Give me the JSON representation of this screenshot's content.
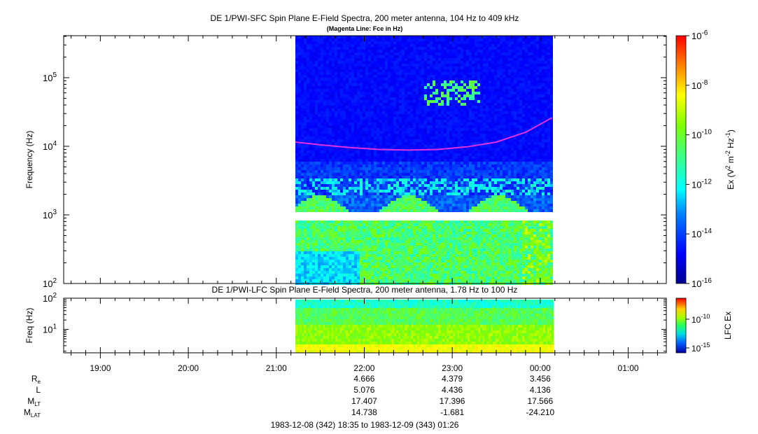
{
  "chart_data": [
    {
      "type": "heatmap",
      "title": "DE 1/PWI-SFC  Spin Plane E-Field Spectra, 200 meter antenna, 104 Hz to 409 kHz",
      "subtitle": "(Magenta Line: Fce in Hz)",
      "ylabel": "Frequency (Hz)",
      "yscale": "log",
      "ylim": [
        100,
        409000
      ],
      "yticks": [
        {
          "base": "10",
          "exp": "2"
        },
        {
          "base": "10",
          "exp": "3"
        },
        {
          "base": "10",
          "exp": "4"
        },
        {
          "base": "10",
          "exp": "5"
        }
      ],
      "data_coverage_utc": [
        "21:13",
        "00:08"
      ],
      "gap_frequency_hz": [
        880,
        1020
      ],
      "colorbar": {
        "label_parts": [
          "Ex (V",
          "2",
          " m",
          "-2",
          " Hz",
          "-1",
          ")"
        ],
        "scale": "log",
        "range": [
          1e-16,
          1e-06
        ],
        "ticks": [
          {
            "base": "10",
            "exp": "-6"
          },
          {
            "base": "10",
            "exp": "-8"
          },
          {
            "base": "10",
            "exp": "-10"
          },
          {
            "base": "10",
            "exp": "-12"
          },
          {
            "base": "10",
            "exp": "-14"
          },
          {
            "base": "10",
            "exp": "-16"
          }
        ]
      },
      "fce_line": {
        "color": "#e030e0",
        "points": [
          {
            "t": "21:13",
            "f": 11500
          },
          {
            "t": "21:30",
            "f": 10500
          },
          {
            "t": "21:50",
            "f": 9600
          },
          {
            "t": "22:10",
            "f": 9000
          },
          {
            "t": "22:30",
            "f": 8800
          },
          {
            "t": "22:50",
            "f": 9000
          },
          {
            "t": "23:10",
            "f": 9800
          },
          {
            "t": "23:30",
            "f": 11500
          },
          {
            "t": "23:50",
            "f": 16000
          },
          {
            "t": "00:08",
            "f": 26000
          }
        ]
      }
    },
    {
      "type": "heatmap",
      "title": "DE 1/PWI-LFC  Spin Plane E-Field Spectra, 200 meter antenna, 1.78 Hz to 100 Hz",
      "ylabel": "Freq (Hz)",
      "yscale": "log",
      "ylim": [
        1.78,
        100
      ],
      "yticks": [
        {
          "base": "10",
          "exp": "1"
        },
        {
          "base": "10",
          "exp": "2"
        }
      ],
      "data_coverage_utc": [
        "21:13",
        "00:08"
      ],
      "colorbar": {
        "label": "LFC Ex",
        "scale": "log",
        "ticks": [
          {
            "base": "10",
            "exp": "-10"
          },
          {
            "base": "10",
            "exp": "-15"
          }
        ]
      }
    }
  ],
  "xaxis": {
    "time_ticks": [
      "19:00",
      "20:00",
      "21:00",
      "22:00",
      "23:00",
      "00:00",
      "01:00"
    ],
    "ephemeris": {
      "rows": [
        {
          "label": "R",
          "sub": "e",
          "values": [
            "4.666",
            "4.379",
            "3.456"
          ]
        },
        {
          "label": "L",
          "sub": "",
          "values": [
            "5.076",
            "4.436",
            "4.136"
          ]
        },
        {
          "label": "M",
          "sub": "LT",
          "values": [
            "17.407",
            "17.396",
            "17.566"
          ]
        },
        {
          "label": "M",
          "sub": "LAT",
          "values": [
            "14.738",
            "-1.681",
            "-24.210"
          ]
        }
      ],
      "at_times": [
        "22:00",
        "23:00",
        "00:00"
      ]
    },
    "time_range": "1983-12-08 (342) 18:35 to 1983-12-09 (343) 01:26"
  }
}
